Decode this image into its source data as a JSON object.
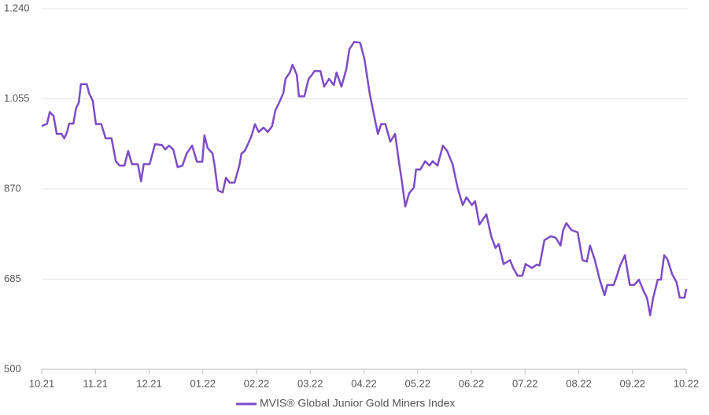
{
  "chart_data": {
    "type": "line",
    "x": [
      0.0,
      0.1,
      0.15,
      0.22,
      0.28,
      0.37,
      0.42,
      0.47,
      0.51,
      0.59,
      0.64,
      0.69,
      0.73,
      0.84,
      0.88,
      0.95,
      1.01,
      1.11,
      1.19,
      1.3,
      1.38,
      1.45,
      1.54,
      1.61,
      1.68,
      1.79,
      1.85,
      1.9,
      2.01,
      2.11,
      2.24,
      2.3,
      2.37,
      2.45,
      2.53,
      2.62,
      2.7,
      2.8,
      2.89,
      2.99,
      3.03,
      3.09,
      3.18,
      3.22,
      3.28,
      3.37,
      3.43,
      3.5,
      3.59,
      3.68,
      3.72,
      3.78,
      3.84,
      3.91,
      3.97,
      4.04,
      4.13,
      4.21,
      4.29,
      4.35,
      4.42,
      4.5,
      4.54,
      4.62,
      4.67,
      4.75,
      4.79,
      4.89,
      4.97,
      5.03,
      5.08,
      5.19,
      5.26,
      5.35,
      5.44,
      5.49,
      5.58,
      5.67,
      5.73,
      5.82,
      5.93,
      6.01,
      6.11,
      6.2,
      6.26,
      6.32,
      6.4,
      6.49,
      6.58,
      6.65,
      6.71,
      6.77,
      6.84,
      6.93,
      6.97,
      7.05,
      7.14,
      7.22,
      7.28,
      7.37,
      7.47,
      7.55,
      7.65,
      7.75,
      7.84,
      7.91,
      8.01,
      8.07,
      8.15,
      8.28,
      8.37,
      8.45,
      8.51,
      8.6,
      8.72,
      8.78,
      8.86,
      8.95,
      9.01,
      9.13,
      9.22,
      9.27,
      9.36,
      9.48,
      9.57,
      9.66,
      9.71,
      9.77,
      9.86,
      9.98,
      10.07,
      10.15,
      10.21,
      10.3,
      10.39,
      10.48,
      10.53,
      10.65,
      10.71,
      10.77,
      10.86,
      10.95,
      11.03,
      11.12,
      11.21,
      11.27,
      11.33,
      11.38,
      11.47,
      11.53,
      11.59,
      11.65,
      11.74,
      11.82,
      11.88,
      11.97,
      12.0
    ],
    "series": [
      {
        "name": "MVIS® Global Junior Gold Miners Index",
        "color": "#7d4cc6",
        "values": [
          999,
          1004,
          1028,
          1020,
          983,
          983,
          974,
          986,
          1004,
          1004,
          1036,
          1047,
          1085,
          1085,
          1067,
          1051,
          1003,
          1003,
          974,
          974,
          927,
          918,
          918,
          948,
          921,
          921,
          886,
          921,
          921,
          962,
          960,
          951,
          959,
          951,
          915,
          918,
          943,
          959,
          926,
          926,
          980,
          954,
          943,
          918,
          867,
          863,
          893,
          883,
          883,
          918,
          943,
          948,
          962,
          980,
          1003,
          987,
          996,
          987,
          999,
          1031,
          1047,
          1067,
          1096,
          1109,
          1125,
          1104,
          1060,
          1060,
          1096,
          1104,
          1112,
          1112,
          1080,
          1096,
          1083,
          1109,
          1080,
          1115,
          1157,
          1172,
          1170,
          1136,
          1064,
          1015,
          983,
          1003,
          1003,
          967,
          983,
          927,
          883,
          834,
          861,
          873,
          910,
          910,
          927,
          918,
          927,
          918,
          959,
          948,
          921,
          870,
          837,
          853,
          837,
          845,
          797,
          818,
          773,
          749,
          757,
          716,
          724,
          708,
          692,
          692,
          716,
          708,
          715,
          713,
          765,
          773,
          770,
          754,
          786,
          800,
          786,
          781,
          724,
          721,
          754,
          724,
          684,
          652,
          673,
          673,
          692,
          713,
          734,
          673,
          673,
          684,
          660,
          647,
          611,
          644,
          684,
          684,
          734,
          726,
          695,
          679,
          647,
          647,
          665
        ]
      }
    ],
    "xlim": [
      0,
      12
    ],
    "xticks": [
      {
        "value": 0,
        "label": "10.21"
      },
      {
        "value": 1,
        "label": "11.21"
      },
      {
        "value": 2,
        "label": "12.21"
      },
      {
        "value": 3,
        "label": "01.22"
      },
      {
        "value": 4,
        "label": "02.22"
      },
      {
        "value": 5,
        "label": "03.22"
      },
      {
        "value": 6,
        "label": "04.22"
      },
      {
        "value": 7,
        "label": "05.22"
      },
      {
        "value": 8,
        "label": "06.22"
      },
      {
        "value": 9,
        "label": "07.22"
      },
      {
        "value": 10,
        "label": "08.22"
      },
      {
        "value": 11,
        "label": "09.22"
      },
      {
        "value": 12,
        "label": "10.22"
      }
    ],
    "ylim": [
      500,
      1240
    ],
    "yticks": [
      500,
      685,
      870,
      {
        "value": 1055,
        "label": "1.055"
      },
      {
        "value": 1240,
        "label": "1.240"
      }
    ],
    "grid": true,
    "legend": "bottom"
  }
}
